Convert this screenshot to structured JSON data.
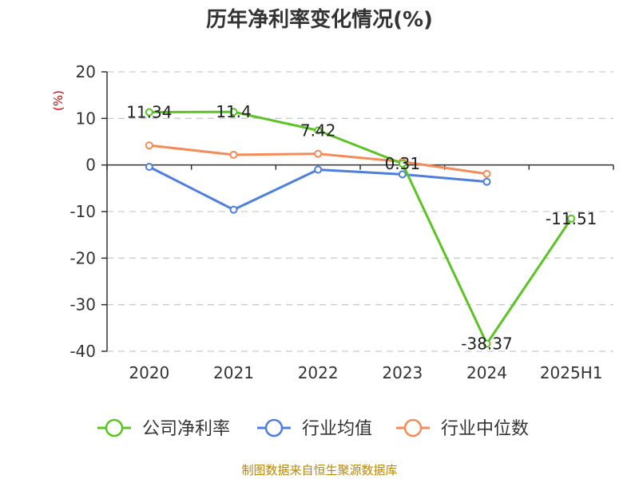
{
  "chart_data": {
    "type": "line",
    "title": "历年净利率变化情况(%)",
    "ylabel": "(%)",
    "xlabel": "",
    "categories": [
      "2020",
      "2021",
      "2022",
      "2023",
      "2024",
      "2025H1"
    ],
    "ylim": [
      -40,
      20
    ],
    "yticks": [
      20,
      10,
      0,
      -10,
      -20,
      -30,
      -40
    ],
    "grid": true,
    "legend_position": "bottom",
    "series": [
      {
        "name": "公司净利率",
        "color": "#5bc424",
        "labels": true,
        "values": [
          11.34,
          11.4,
          7.42,
          0.31,
          -38.37,
          -11.51
        ]
      },
      {
        "name": "行业均值",
        "color": "#4f7fdc",
        "labels": false,
        "values": [
          -0.4,
          -9.6,
          -1.0,
          -2.0,
          -3.6,
          null
        ]
      },
      {
        "name": "行业中位数",
        "color": "#f48b5a",
        "labels": false,
        "values": [
          4.2,
          2.2,
          2.4,
          0.7,
          -1.9,
          null
        ]
      }
    ]
  },
  "source_text": "制图数据来自恒生聚源数据库"
}
